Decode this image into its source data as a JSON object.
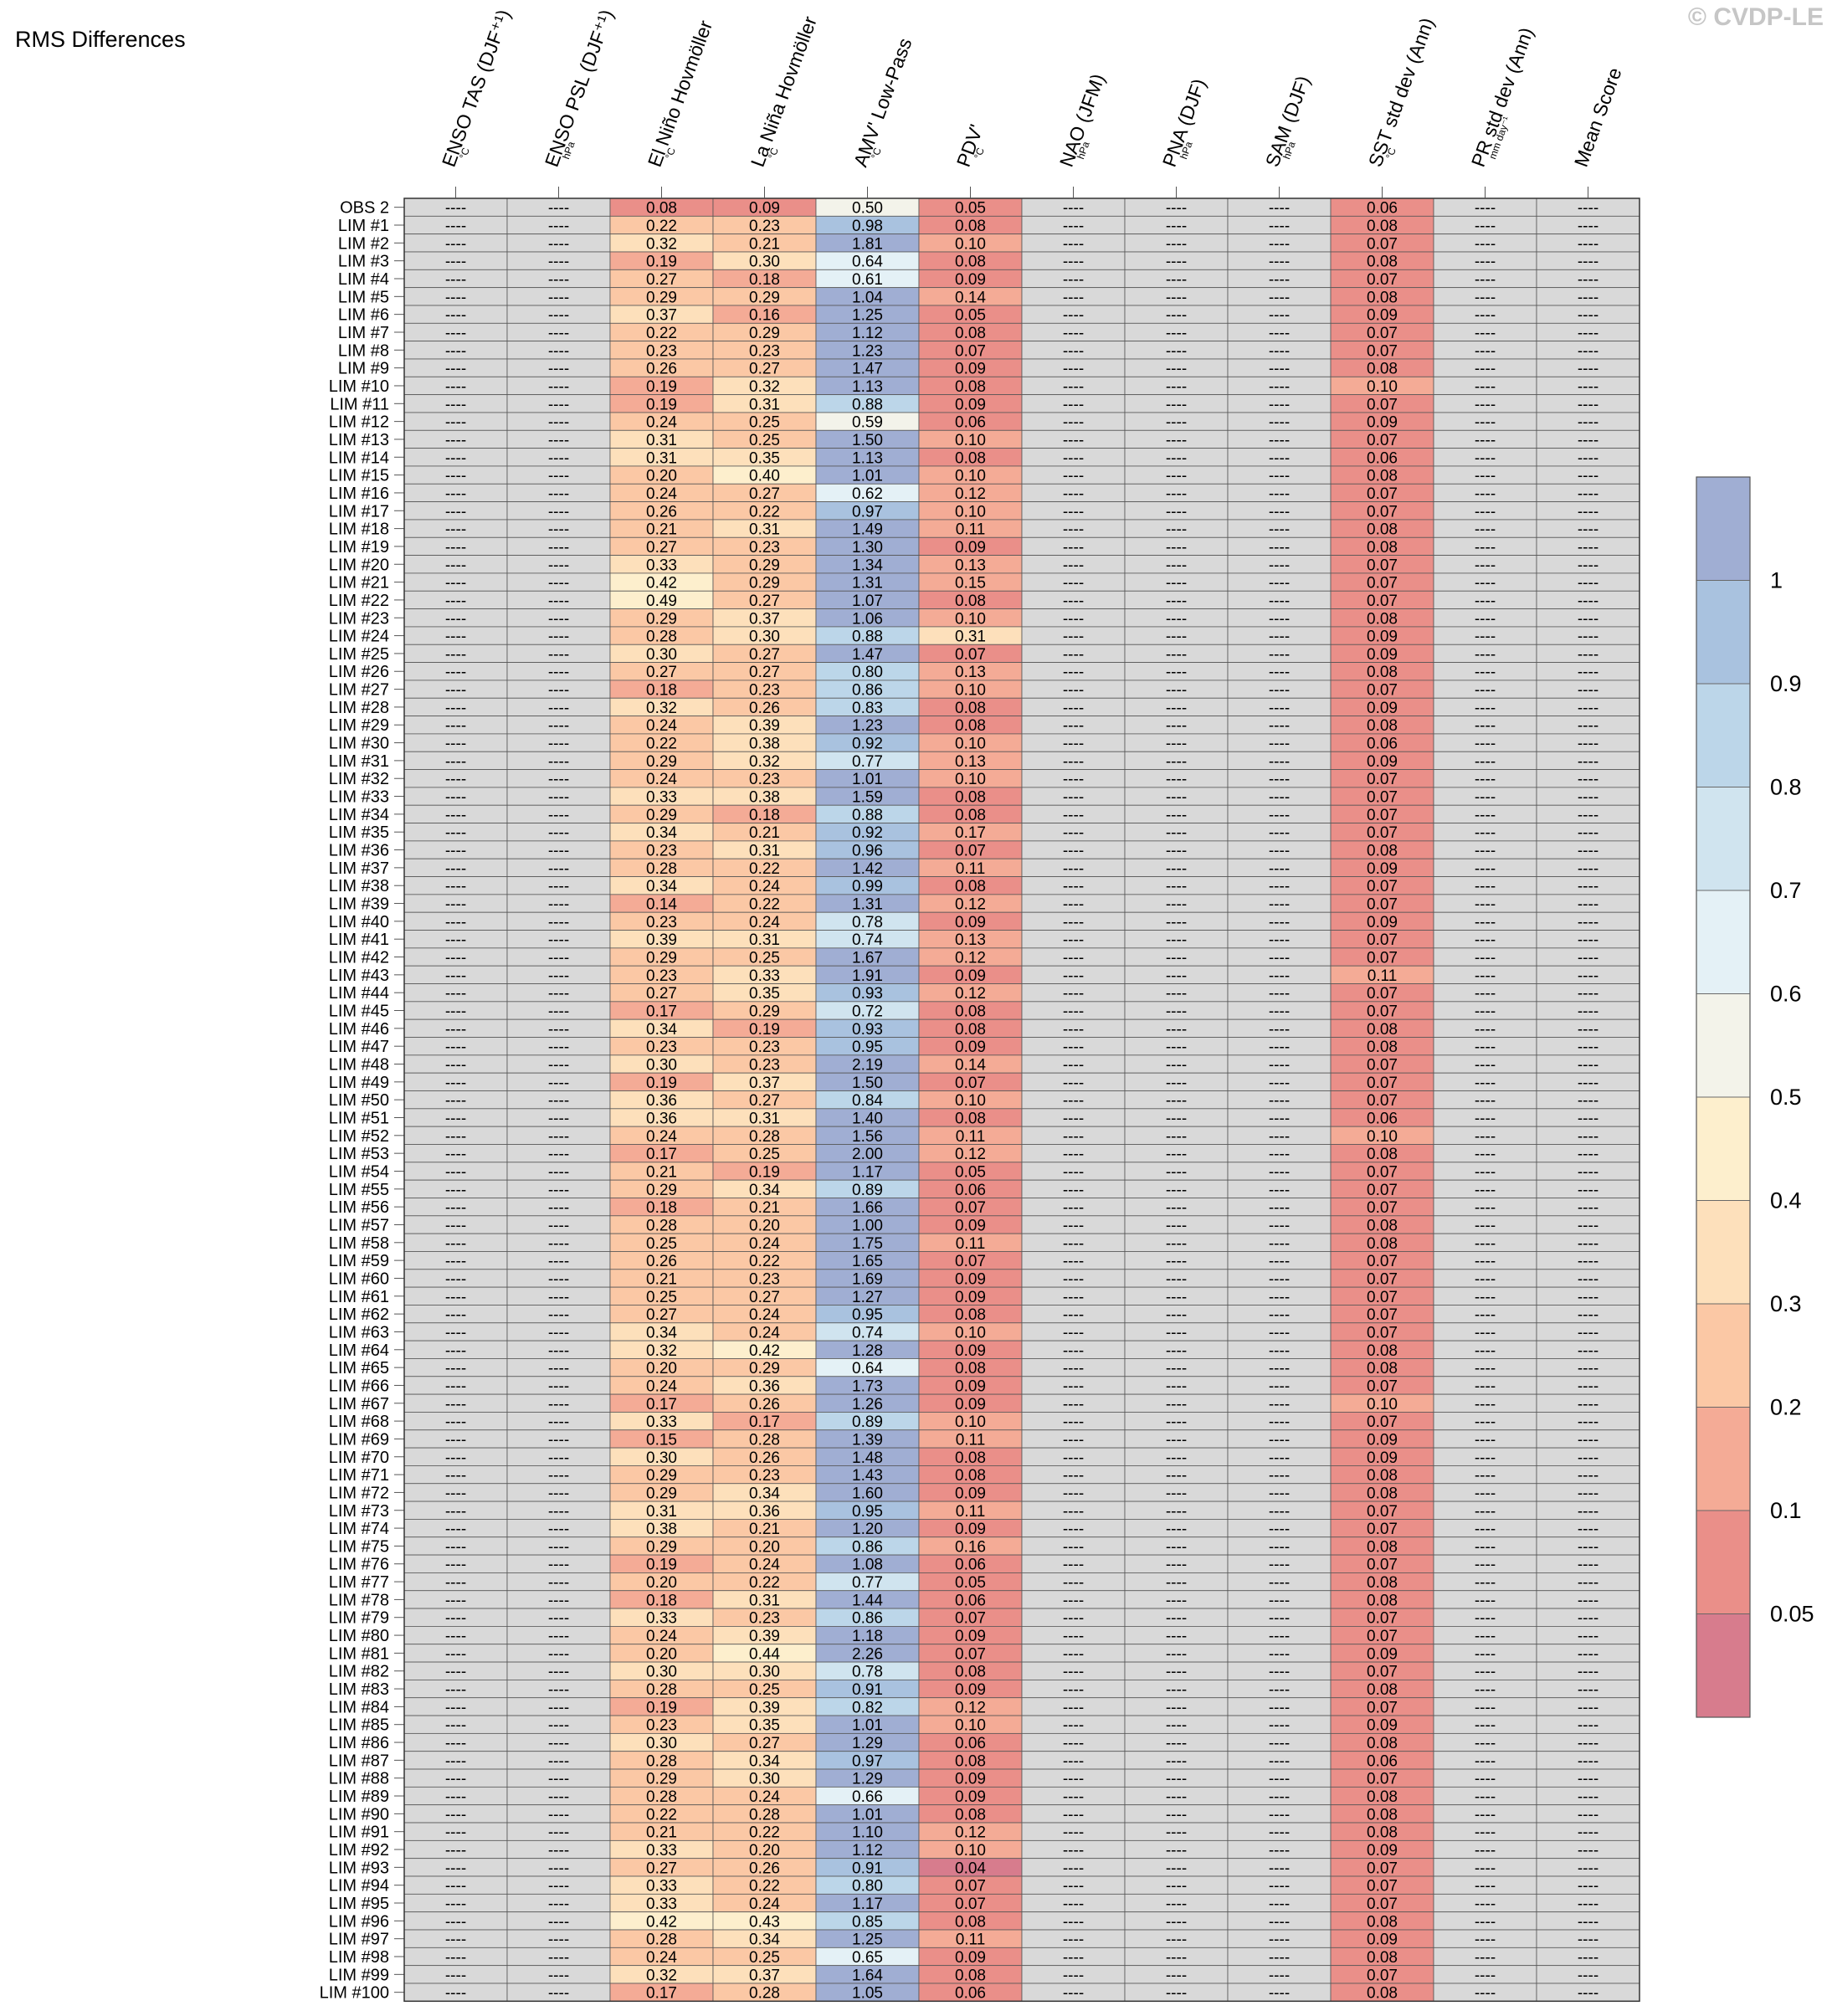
{
  "title": "RMS Differences",
  "watermark": "© CVDP-LE",
  "chart_data": {
    "type": "heatmap",
    "title": "RMS Differences",
    "columns": [
      {
        "label": "ENSO TAS (DJF⁺¹)",
        "unit": "°C"
      },
      {
        "label": "ENSO PSL (DJF⁺¹)",
        "unit": "hPa"
      },
      {
        "label": "El Niño Hovmöller",
        "unit": "°C"
      },
      {
        "label": "La Niña Hovmöller",
        "unit": "°C"
      },
      {
        "label": "AMV' Low-Pass",
        "unit": "°C"
      },
      {
        "label": "PDV'",
        "unit": "°C"
      },
      {
        "label": "NAO (JFM)",
        "unit": "hPa"
      },
      {
        "label": "PNA (DJF)",
        "unit": "hPa"
      },
      {
        "label": "SAM (DJF)",
        "unit": "hPa"
      },
      {
        "label": "SST std dev (Ann)",
        "unit": "°C"
      },
      {
        "label": "PR std dev (Ann)",
        "unit": "mm day⁻¹"
      },
      {
        "label": "Mean Score",
        "unit": ""
      }
    ],
    "missing_label": "----",
    "missing_color": "#d9d9d9",
    "rows": [
      "OBS 2",
      "LIM #1",
      "LIM #2",
      "LIM #3",
      "LIM #4",
      "LIM #5",
      "LIM #6",
      "LIM #7",
      "LIM #8",
      "LIM #9",
      "LIM #10",
      "LIM #11",
      "LIM #12",
      "LIM #13",
      "LIM #14",
      "LIM #15",
      "LIM #16",
      "LIM #17",
      "LIM #18",
      "LIM #19",
      "LIM #20",
      "LIM #21",
      "LIM #22",
      "LIM #23",
      "LIM #24",
      "LIM #25",
      "LIM #26",
      "LIM #27",
      "LIM #28",
      "LIM #29",
      "LIM #30",
      "LIM #31",
      "LIM #32",
      "LIM #33",
      "LIM #34",
      "LIM #35",
      "LIM #36",
      "LIM #37",
      "LIM #38",
      "LIM #39",
      "LIM #40",
      "LIM #41",
      "LIM #42",
      "LIM #43",
      "LIM #44",
      "LIM #45",
      "LIM #46",
      "LIM #47",
      "LIM #48",
      "LIM #49",
      "LIM #50",
      "LIM #51",
      "LIM #52",
      "LIM #53",
      "LIM #54",
      "LIM #55",
      "LIM #56",
      "LIM #57",
      "LIM #58",
      "LIM #59",
      "LIM #60",
      "LIM #61",
      "LIM #62",
      "LIM #63",
      "LIM #64",
      "LIM #65",
      "LIM #66",
      "LIM #67",
      "LIM #68",
      "LIM #69",
      "LIM #70",
      "LIM #71",
      "LIM #72",
      "LIM #73",
      "LIM #74",
      "LIM #75",
      "LIM #76",
      "LIM #77",
      "LIM #78",
      "LIM #79",
      "LIM #80",
      "LIM #81",
      "LIM #82",
      "LIM #83",
      "LIM #84",
      "LIM #85",
      "LIM #86",
      "LIM #87",
      "LIM #88",
      "LIM #89",
      "LIM #90",
      "LIM #91",
      "LIM #92",
      "LIM #93",
      "LIM #94",
      "LIM #95",
      "LIM #96",
      "LIM #97",
      "LIM #98",
      "LIM #99",
      "LIM #100"
    ],
    "el_nino": [
      0.08,
      0.22,
      0.32,
      0.19,
      0.27,
      0.29,
      0.37,
      0.22,
      0.23,
      0.26,
      0.19,
      0.19,
      0.24,
      0.31,
      0.31,
      0.2,
      0.24,
      0.26,
      0.21,
      0.27,
      0.33,
      0.42,
      0.49,
      0.29,
      0.28,
      0.3,
      0.27,
      0.18,
      0.32,
      0.24,
      0.22,
      0.29,
      0.24,
      0.33,
      0.29,
      0.34,
      0.23,
      0.28,
      0.34,
      0.14,
      0.23,
      0.39,
      0.29,
      0.23,
      0.27,
      0.17,
      0.34,
      0.23,
      0.3,
      0.19,
      0.36,
      0.36,
      0.24,
      0.17,
      0.21,
      0.29,
      0.18,
      0.28,
      0.25,
      0.26,
      0.21,
      0.25,
      0.27,
      0.34,
      0.32,
      0.2,
      0.24,
      0.17,
      0.33,
      0.15,
      0.3,
      0.29,
      0.29,
      0.31,
      0.38,
      0.29,
      0.19,
      0.2,
      0.18,
      0.33,
      0.24,
      0.2,
      0.3,
      0.28,
      0.19,
      0.23,
      0.3,
      0.28,
      0.29,
      0.28,
      0.22,
      0.21,
      0.33,
      0.27,
      0.33,
      0.33,
      0.42,
      0.28,
      0.24,
      0.32,
      0.17
    ],
    "la_nina": [
      0.09,
      0.23,
      0.21,
      0.3,
      0.18,
      0.29,
      0.16,
      0.29,
      0.23,
      0.27,
      0.32,
      0.31,
      0.25,
      0.25,
      0.35,
      0.4,
      0.27,
      0.22,
      0.31,
      0.23,
      0.29,
      0.29,
      0.27,
      0.37,
      0.3,
      0.27,
      0.27,
      0.23,
      0.26,
      0.39,
      0.38,
      0.32,
      0.23,
      0.38,
      0.18,
      0.21,
      0.31,
      0.22,
      0.24,
      0.22,
      0.24,
      0.31,
      0.25,
      0.33,
      0.35,
      0.29,
      0.19,
      0.23,
      0.23,
      0.37,
      0.27,
      0.31,
      0.28,
      0.25,
      0.19,
      0.34,
      0.21,
      0.2,
      0.24,
      0.22,
      0.23,
      0.27,
      0.24,
      0.24,
      0.42,
      0.29,
      0.36,
      0.26,
      0.17,
      0.28,
      0.26,
      0.23,
      0.34,
      0.36,
      0.21,
      0.2,
      0.24,
      0.22,
      0.31,
      0.23,
      0.39,
      0.44,
      0.3,
      0.25,
      0.39,
      0.35,
      0.27,
      0.34,
      0.3,
      0.24,
      0.28,
      0.22,
      0.2,
      0.26,
      0.22,
      0.24,
      0.43,
      0.34,
      0.25,
      0.37,
      0.28
    ],
    "amv": [
      0.5,
      0.98,
      1.81,
      0.64,
      0.61,
      1.04,
      1.25,
      1.12,
      1.23,
      1.47,
      1.13,
      0.88,
      0.59,
      1.5,
      1.13,
      1.01,
      0.62,
      0.97,
      1.49,
      1.3,
      1.34,
      1.31,
      1.07,
      1.06,
      0.88,
      1.47,
      0.8,
      0.86,
      0.83,
      1.23,
      0.92,
      0.77,
      1.01,
      1.59,
      0.88,
      0.92,
      0.96,
      1.42,
      0.99,
      1.31,
      0.78,
      0.74,
      1.67,
      1.91,
      0.93,
      0.72,
      0.93,
      0.95,
      2.19,
      1.5,
      0.84,
      1.4,
      1.56,
      2.0,
      1.17,
      0.89,
      1.66,
      1.0,
      1.75,
      1.65,
      1.69,
      1.27,
      0.95,
      0.74,
      1.28,
      0.64,
      1.73,
      1.26,
      0.89,
      1.39,
      1.48,
      1.43,
      1.6,
      0.95,
      1.2,
      0.86,
      1.08,
      0.77,
      1.44,
      0.86,
      1.18,
      2.26,
      0.78,
      0.91,
      0.82,
      1.01,
      1.29,
      0.97,
      1.29,
      0.66,
      1.01,
      1.1,
      1.12,
      0.91,
      0.8,
      1.17,
      0.85,
      1.25,
      0.65,
      1.64,
      1.05
    ],
    "pdv": [
      0.05,
      0.08,
      0.1,
      0.08,
      0.09,
      0.14,
      0.05,
      0.08,
      0.07,
      0.09,
      0.08,
      0.09,
      0.06,
      0.1,
      0.08,
      0.1,
      0.12,
      0.1,
      0.11,
      0.09,
      0.13,
      0.15,
      0.08,
      0.1,
      0.31,
      0.07,
      0.13,
      0.1,
      0.08,
      0.08,
      0.1,
      0.13,
      0.1,
      0.08,
      0.08,
      0.17,
      0.07,
      0.11,
      0.08,
      0.12,
      0.09,
      0.13,
      0.12,
      0.09,
      0.12,
      0.08,
      0.08,
      0.09,
      0.14,
      0.07,
      0.1,
      0.08,
      0.11,
      0.12,
      0.05,
      0.06,
      0.07,
      0.09,
      0.11,
      0.07,
      0.09,
      0.09,
      0.08,
      0.1,
      0.09,
      0.08,
      0.09,
      0.09,
      0.1,
      0.11,
      0.08,
      0.08,
      0.09,
      0.11,
      0.09,
      0.16,
      0.06,
      0.05,
      0.06,
      0.07,
      0.09,
      0.07,
      0.08,
      0.09,
      0.12,
      0.1,
      0.06,
      0.08,
      0.09,
      0.09,
      0.08,
      0.12,
      0.1,
      0.04,
      0.07,
      0.07,
      0.08,
      0.11,
      0.09,
      0.08,
      0.06
    ],
    "sst_sd": [
      0.06,
      0.08,
      0.07,
      0.08,
      0.07,
      0.08,
      0.09,
      0.07,
      0.07,
      0.08,
      0.1,
      0.07,
      0.09,
      0.07,
      0.06,
      0.08,
      0.07,
      0.07,
      0.08,
      0.08,
      0.07,
      0.07,
      0.07,
      0.08,
      0.09,
      0.09,
      0.08,
      0.07,
      0.09,
      0.08,
      0.06,
      0.09,
      0.07,
      0.07,
      0.07,
      0.07,
      0.08,
      0.09,
      0.07,
      0.07,
      0.09,
      0.07,
      0.07,
      0.11,
      0.07,
      0.07,
      0.08,
      0.08,
      0.07,
      0.07,
      0.07,
      0.06,
      0.1,
      0.08,
      0.07,
      0.07,
      0.07,
      0.08,
      0.08,
      0.07,
      0.07,
      0.07,
      0.07,
      0.07,
      0.08,
      0.08,
      0.07,
      0.1,
      0.07,
      0.09,
      0.09,
      0.08,
      0.08,
      0.07,
      0.07,
      0.08,
      0.07,
      0.08,
      0.08,
      0.07,
      0.07,
      0.09,
      0.07,
      0.08,
      0.07,
      0.09,
      0.08,
      0.06,
      0.07,
      0.08,
      0.08,
      0.08,
      0.09,
      0.07,
      0.07,
      0.07,
      0.08,
      0.09,
      0.08,
      0.07,
      0.08
    ],
    "colorbar": {
      "labels": [
        "1",
        "0.9",
        "0.8",
        "0.7",
        "0.6",
        "0.5",
        "0.4",
        "0.3",
        "0.2",
        "0.1",
        "0.05"
      ],
      "colors": [
        "#a0aed3",
        "#a9c2df",
        "#bcd6e9",
        "#d0e4ef",
        "#e4f1f6",
        "#f3f3ea",
        "#fdefcd",
        "#fde0bb",
        "#fbc8a5",
        "#f4ab96",
        "#ea8f89",
        "#d77c8d"
      ]
    }
  }
}
